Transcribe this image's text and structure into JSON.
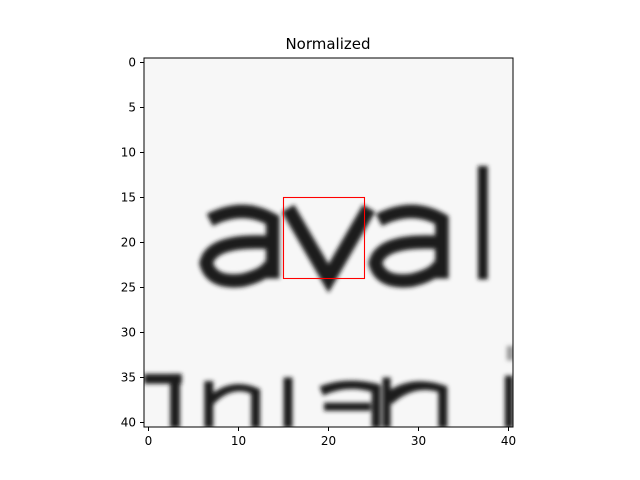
{
  "chart_data": {
    "type": "heatmap",
    "title": "Normalized",
    "xlabel": "",
    "ylabel": "",
    "xlim": [
      -0.5,
      40.5
    ],
    "ylim": [
      40.5,
      -0.5
    ],
    "x_ticks": [
      0,
      10,
      20,
      30,
      40
    ],
    "y_ticks": [
      0,
      5,
      10,
      15,
      20,
      25,
      30,
      35,
      40
    ],
    "x_tick_labels": [
      "0",
      "10",
      "20",
      "30",
      "40"
    ],
    "y_tick_labels": [
      "0",
      "5",
      "10",
      "15",
      "20",
      "25",
      "30",
      "35",
      "40"
    ],
    "grid": false,
    "colormap": "gray",
    "content_description": "grayscale scan of printed text: upper line reads 'aval', lower line partially cut off",
    "highlight_box": {
      "x0": 15,
      "y0": 15,
      "x1": 24,
      "y1": 24,
      "color": "#ff0000"
    }
  }
}
